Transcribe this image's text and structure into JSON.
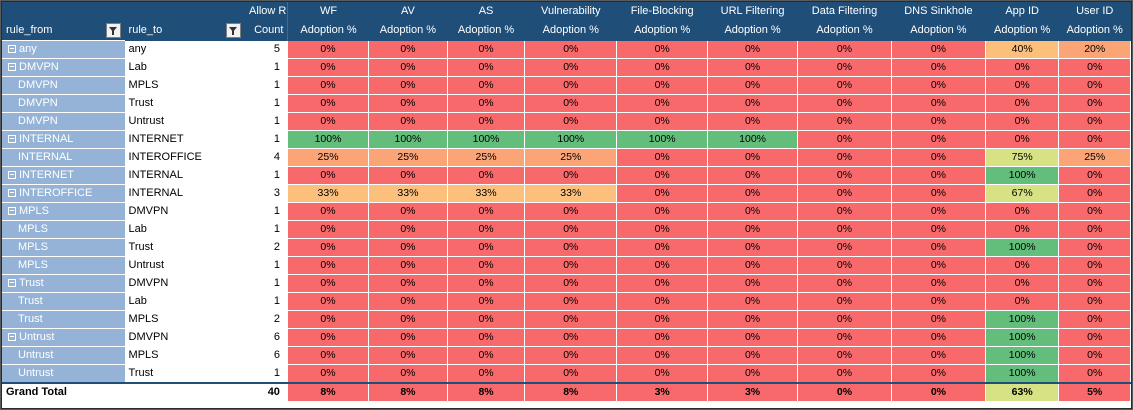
{
  "header": {
    "rule_from": "rule_from",
    "rule_to": "rule_to",
    "columns": [
      {
        "line1": "Allow Rule",
        "line2": "Count"
      },
      {
        "line1": "WF",
        "line2": "Adoption %"
      },
      {
        "line1": "AV",
        "line2": "Adoption %"
      },
      {
        "line1": "AS",
        "line2": "Adoption %"
      },
      {
        "line1": "Vulnerability",
        "line2": "Adoption %"
      },
      {
        "line1": "File-Blocking",
        "line2": "Adoption %"
      },
      {
        "line1": "URL Filtering",
        "line2": "Adoption %"
      },
      {
        "line1": "Data Filtering",
        "line2": "Adoption %"
      },
      {
        "line1": "DNS Sinkhole",
        "line2": "Adoption %"
      },
      {
        "line1": "App ID",
        "line2": "Adoption %"
      },
      {
        "line1": "User ID",
        "line2": "Adoption %"
      }
    ]
  },
  "colors": {
    "red": "#f8696b",
    "orange": "#fba476",
    "light_orange": "#fdc07c",
    "yellow_green": "#d6e283",
    "green": "#63be7b",
    "header_bg": "#1f4e79",
    "row_label_bg": "#95b3d7"
  },
  "rows": [
    {
      "from": "any",
      "collapse": true,
      "to": "any",
      "count": "5",
      "values": [
        "0%",
        "0%",
        "0%",
        "0%",
        "0%",
        "0%",
        "0%",
        "0%",
        "40%",
        "20%"
      ],
      "colors": [
        "red",
        "red",
        "red",
        "red",
        "red",
        "red",
        "red",
        "red",
        "light_orange",
        "orange"
      ]
    },
    {
      "from": "DMVPN",
      "collapse": true,
      "to": "Lab",
      "count": "1",
      "values": [
        "0%",
        "0%",
        "0%",
        "0%",
        "0%",
        "0%",
        "0%",
        "0%",
        "0%",
        "0%"
      ],
      "colors": [
        "red",
        "red",
        "red",
        "red",
        "red",
        "red",
        "red",
        "red",
        "red",
        "red"
      ]
    },
    {
      "from": "DMVPN",
      "collapse": false,
      "to": "MPLS",
      "count": "1",
      "values": [
        "0%",
        "0%",
        "0%",
        "0%",
        "0%",
        "0%",
        "0%",
        "0%",
        "0%",
        "0%"
      ],
      "colors": [
        "red",
        "red",
        "red",
        "red",
        "red",
        "red",
        "red",
        "red",
        "red",
        "red"
      ]
    },
    {
      "from": "DMVPN",
      "collapse": false,
      "to": "Trust",
      "count": "1",
      "values": [
        "0%",
        "0%",
        "0%",
        "0%",
        "0%",
        "0%",
        "0%",
        "0%",
        "0%",
        "0%"
      ],
      "colors": [
        "red",
        "red",
        "red",
        "red",
        "red",
        "red",
        "red",
        "red",
        "red",
        "red"
      ]
    },
    {
      "from": "DMVPN",
      "collapse": false,
      "to": "Untrust",
      "count": "1",
      "values": [
        "0%",
        "0%",
        "0%",
        "0%",
        "0%",
        "0%",
        "0%",
        "0%",
        "0%",
        "0%"
      ],
      "colors": [
        "red",
        "red",
        "red",
        "red",
        "red",
        "red",
        "red",
        "red",
        "red",
        "red"
      ]
    },
    {
      "from": "INTERNAL",
      "collapse": true,
      "to": "INTERNET",
      "count": "1",
      "values": [
        "100%",
        "100%",
        "100%",
        "100%",
        "100%",
        "100%",
        "0%",
        "0%",
        "0%",
        "0%"
      ],
      "colors": [
        "green",
        "green",
        "green",
        "green",
        "green",
        "green",
        "red",
        "red",
        "red",
        "red"
      ]
    },
    {
      "from": "INTERNAL",
      "collapse": false,
      "to": "INTEROFFICE",
      "count": "4",
      "values": [
        "25%",
        "25%",
        "25%",
        "25%",
        "0%",
        "0%",
        "0%",
        "0%",
        "75%",
        "25%"
      ],
      "colors": [
        "orange",
        "orange",
        "orange",
        "orange",
        "red",
        "red",
        "red",
        "red",
        "yellow_green",
        "orange"
      ]
    },
    {
      "from": "INTERNET",
      "collapse": true,
      "to": "INTERNAL",
      "count": "1",
      "values": [
        "0%",
        "0%",
        "0%",
        "0%",
        "0%",
        "0%",
        "0%",
        "0%",
        "100%",
        "0%"
      ],
      "colors": [
        "red",
        "red",
        "red",
        "red",
        "red",
        "red",
        "red",
        "red",
        "green",
        "red"
      ]
    },
    {
      "from": "INTEROFFICE",
      "collapse": true,
      "to": "INTERNAL",
      "count": "3",
      "values": [
        "33%",
        "33%",
        "33%",
        "33%",
        "0%",
        "0%",
        "0%",
        "0%",
        "67%",
        "0%"
      ],
      "colors": [
        "light_orange",
        "light_orange",
        "light_orange",
        "light_orange",
        "red",
        "red",
        "red",
        "red",
        "yellow_green",
        "red"
      ]
    },
    {
      "from": "MPLS",
      "collapse": true,
      "to": "DMVPN",
      "count": "1",
      "values": [
        "0%",
        "0%",
        "0%",
        "0%",
        "0%",
        "0%",
        "0%",
        "0%",
        "0%",
        "0%"
      ],
      "colors": [
        "red",
        "red",
        "red",
        "red",
        "red",
        "red",
        "red",
        "red",
        "red",
        "red"
      ]
    },
    {
      "from": "MPLS",
      "collapse": false,
      "to": "Lab",
      "count": "1",
      "values": [
        "0%",
        "0%",
        "0%",
        "0%",
        "0%",
        "0%",
        "0%",
        "0%",
        "0%",
        "0%"
      ],
      "colors": [
        "red",
        "red",
        "red",
        "red",
        "red",
        "red",
        "red",
        "red",
        "red",
        "red"
      ]
    },
    {
      "from": "MPLS",
      "collapse": false,
      "to": "Trust",
      "count": "2",
      "values": [
        "0%",
        "0%",
        "0%",
        "0%",
        "0%",
        "0%",
        "0%",
        "0%",
        "100%",
        "0%"
      ],
      "colors": [
        "red",
        "red",
        "red",
        "red",
        "red",
        "red",
        "red",
        "red",
        "green",
        "red"
      ]
    },
    {
      "from": "MPLS",
      "collapse": false,
      "to": "Untrust",
      "count": "1",
      "values": [
        "0%",
        "0%",
        "0%",
        "0%",
        "0%",
        "0%",
        "0%",
        "0%",
        "0%",
        "0%"
      ],
      "colors": [
        "red",
        "red",
        "red",
        "red",
        "red",
        "red",
        "red",
        "red",
        "red",
        "red"
      ]
    },
    {
      "from": "Trust",
      "collapse": true,
      "to": "DMVPN",
      "count": "1",
      "values": [
        "0%",
        "0%",
        "0%",
        "0%",
        "0%",
        "0%",
        "0%",
        "0%",
        "0%",
        "0%"
      ],
      "colors": [
        "red",
        "red",
        "red",
        "red",
        "red",
        "red",
        "red",
        "red",
        "red",
        "red"
      ]
    },
    {
      "from": "Trust",
      "collapse": false,
      "to": "Lab",
      "count": "1",
      "values": [
        "0%",
        "0%",
        "0%",
        "0%",
        "0%",
        "0%",
        "0%",
        "0%",
        "0%",
        "0%"
      ],
      "colors": [
        "red",
        "red",
        "red",
        "red",
        "red",
        "red",
        "red",
        "red",
        "red",
        "red"
      ]
    },
    {
      "from": "Trust",
      "collapse": false,
      "to": "MPLS",
      "count": "2",
      "values": [
        "0%",
        "0%",
        "0%",
        "0%",
        "0%",
        "0%",
        "0%",
        "0%",
        "100%",
        "0%"
      ],
      "colors": [
        "red",
        "red",
        "red",
        "red",
        "red",
        "red",
        "red",
        "red",
        "green",
        "red"
      ]
    },
    {
      "from": "Untrust",
      "collapse": true,
      "to": "DMVPN",
      "count": "6",
      "values": [
        "0%",
        "0%",
        "0%",
        "0%",
        "0%",
        "0%",
        "0%",
        "0%",
        "100%",
        "0%"
      ],
      "colors": [
        "red",
        "red",
        "red",
        "red",
        "red",
        "red",
        "red",
        "red",
        "green",
        "red"
      ]
    },
    {
      "from": "Untrust",
      "collapse": false,
      "to": "MPLS",
      "count": "6",
      "values": [
        "0%",
        "0%",
        "0%",
        "0%",
        "0%",
        "0%",
        "0%",
        "0%",
        "100%",
        "0%"
      ],
      "colors": [
        "red",
        "red",
        "red",
        "red",
        "red",
        "red",
        "red",
        "red",
        "green",
        "red"
      ]
    },
    {
      "from": "Untrust",
      "collapse": false,
      "to": "Trust",
      "count": "1",
      "values": [
        "0%",
        "0%",
        "0%",
        "0%",
        "0%",
        "0%",
        "0%",
        "0%",
        "100%",
        "0%"
      ],
      "colors": [
        "red",
        "red",
        "red",
        "red",
        "red",
        "red",
        "red",
        "red",
        "green",
        "red"
      ]
    }
  ],
  "total": {
    "label": "Grand Total",
    "count": "40",
    "values": [
      "8%",
      "8%",
      "8%",
      "8%",
      "3%",
      "3%",
      "0%",
      "0%",
      "63%",
      "5%"
    ],
    "colors": [
      "red",
      "red",
      "red",
      "red",
      "red",
      "red",
      "red",
      "red",
      "yellow_green",
      "red"
    ]
  }
}
